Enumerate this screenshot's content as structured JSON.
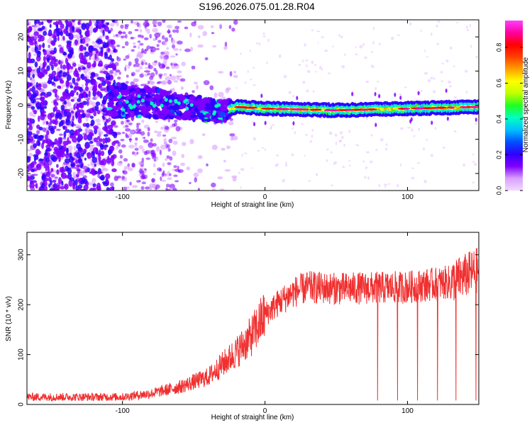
{
  "title": "S196.2026.075.01.28.R04",
  "chart_data": [
    {
      "type": "heatmap",
      "name": "spectrogram",
      "xlabel": "Height of straight line (km)",
      "ylabel": "Frequency (Hz)",
      "xlim": [
        -167,
        150
      ],
      "ylim": [
        -25,
        25
      ],
      "xticks": [
        -100,
        0,
        100
      ],
      "yticks": [
        -20,
        -10,
        0,
        10,
        20
      ],
      "grid": false,
      "signal_band": {
        "center_hz": [
          {
            "x": -110,
            "hz": 1.5
          },
          {
            "x": -60,
            "hz": 0
          },
          {
            "x": -30,
            "hz": -2
          },
          {
            "x": -20,
            "hz": -0.5
          },
          {
            "x": 0,
            "hz": -1
          },
          {
            "x": 50,
            "hz": -1.5
          },
          {
            "x": 100,
            "hz": -1
          },
          {
            "x": 150,
            "hz": -0.5
          }
        ],
        "noise_extent_x": [
          -167,
          -20
        ],
        "dense_noise_extent_x": [
          -167,
          -110
        ],
        "band_start_x": -110,
        "strong_band_start_x": -25
      },
      "colorbar": {
        "label": "Normalized spectral amplitude",
        "range": [
          0,
          0.95
        ],
        "ticks": [
          0.0,
          0.2,
          0.4,
          0.6,
          0.8
        ],
        "tick_labels": [
          "0.0",
          "0.2",
          "0.4",
          "0.6",
          "0.8"
        ],
        "colors": [
          "#f2d9ff",
          "#d9a0ff",
          "#8000ff",
          "#3000ff",
          "#0050ff",
          "#00c0ff",
          "#00ffc0",
          "#20ff20",
          "#c0ff00",
          "#ffff00",
          "#ffa000",
          "#ff4000",
          "#ff0000",
          "#ff00a0",
          "#ff40ff"
        ]
      }
    },
    {
      "type": "line",
      "name": "snr",
      "xlabel": "Height of straight line (km)",
      "ylabel": "SNR (10 * v/v)",
      "xlim": [
        -167,
        150
      ],
      "ylim": [
        0,
        345
      ],
      "xticks": [
        -100,
        0,
        100
      ],
      "yticks": [
        0,
        100,
        200,
        300
      ],
      "grid": false,
      "color": "#f03030",
      "trend": {
        "x": [
          -167,
          -100,
          -80,
          -60,
          -40,
          -30,
          -20,
          -10,
          0,
          10,
          20,
          30,
          50,
          100,
          130,
          150
        ],
        "y": [
          15,
          15,
          22,
          35,
          55,
          80,
          105,
          135,
          180,
          205,
          225,
          235,
          232,
          235,
          245,
          270
        ]
      },
      "dropouts_x": [
        79,
        93,
        107,
        121,
        134,
        148
      ]
    }
  ]
}
